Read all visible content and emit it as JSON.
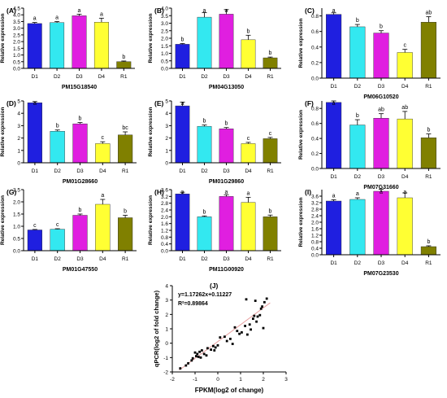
{
  "figure": {
    "categories": [
      "D1",
      "D2",
      "D3",
      "D4",
      "R1"
    ],
    "bar_colors": [
      "#1f1fe0",
      "#33e8f0",
      "#e01fe0",
      "#ffff33",
      "#808000"
    ],
    "axis_label": "Relative expression"
  },
  "chart_data": [
    {
      "type": "bar",
      "panel": "(A)",
      "title": "PM15G18540",
      "ylabel": "Relative expression",
      "categories": [
        "D1",
        "D2",
        "D3",
        "D4",
        "R1"
      ],
      "values": [
        3.35,
        3.42,
        3.93,
        3.45,
        0.5
      ],
      "errors": [
        0.08,
        0.08,
        0.12,
        0.3,
        0.05
      ],
      "letters": [
        "a",
        "a",
        "a",
        "a",
        "b"
      ],
      "ylim": [
        0,
        4.5
      ],
      "yticks": [
        "0.0",
        "0.5",
        "1.0",
        "1.5",
        "2.0",
        "2.5",
        "3.0",
        "3.5",
        "4.0",
        "4.5"
      ]
    },
    {
      "type": "bar",
      "panel": "(B)",
      "title": "PM04G13050",
      "ylabel": "Relative expression",
      "categories": [
        "D1",
        "D2",
        "D3",
        "D4",
        "R1"
      ],
      "values": [
        1.6,
        3.4,
        3.6,
        1.9,
        0.7
      ],
      "errors": [
        0.05,
        0.3,
        0.3,
        0.3,
        0.05
      ],
      "letters": [
        "b",
        "a",
        "a",
        "b",
        "b"
      ],
      "ylim": [
        0,
        4.0
      ],
      "yticks": [
        "0.0",
        "0.5",
        "1.0",
        "1.5",
        "2.0",
        "2.5",
        "3.0",
        "3.5",
        "4.0"
      ]
    },
    {
      "type": "bar",
      "panel": "(C)",
      "title": "PM06G10520",
      "ylabel": "Relative expression",
      "categories": [
        "D1",
        "D2",
        "D3",
        "D4",
        "R1"
      ],
      "values": [
        0.82,
        0.66,
        0.58,
        0.33,
        0.72
      ],
      "errors": [
        0.02,
        0.03,
        0.03,
        0.04,
        0.07
      ],
      "letters": [
        "a",
        "b",
        "b",
        "c",
        "ab"
      ],
      "ylim": [
        0,
        0.9
      ],
      "yticks": [
        "0.0",
        "0.2",
        "0.4",
        "0.6",
        "0.8"
      ]
    },
    {
      "type": "bar",
      "panel": "(D)",
      "title": "PM01G28660",
      "ylabel": "Relative expression",
      "categories": [
        "D1",
        "D2",
        "D3",
        "D4",
        "R1"
      ],
      "values": [
        4.85,
        2.55,
        3.15,
        1.55,
        2.25
      ],
      "errors": [
        0.1,
        0.1,
        0.1,
        0.15,
        0.25
      ],
      "letters": [
        "a",
        "b",
        "b",
        "c",
        "bc"
      ],
      "ylim": [
        0,
        5
      ],
      "yticks": [
        "0",
        "1",
        "2",
        "3",
        "4",
        "5"
      ]
    },
    {
      "type": "bar",
      "panel": "(E)",
      "title": "PM01G29860",
      "ylabel": "Relative expression",
      "categories": [
        "D1",
        "D2",
        "D3",
        "D4",
        "R1"
      ],
      "values": [
        4.6,
        2.95,
        2.75,
        1.55,
        1.95
      ],
      "errors": [
        0.3,
        0.1,
        0.1,
        0.1,
        0.1
      ],
      "letters": [
        "a",
        "b",
        "b",
        "c",
        "c"
      ],
      "ylim": [
        0,
        5
      ],
      "yticks": [
        "0",
        "1",
        "2",
        "3",
        "4",
        "5"
      ]
    },
    {
      "type": "bar",
      "panel": "(F)",
      "title": "PM07G31660",
      "ylabel": "Relative expression",
      "categories": [
        "D1",
        "D2",
        "D3",
        "D4",
        "R1"
      ],
      "values": [
        0.88,
        0.58,
        0.67,
        0.66,
        0.41
      ],
      "errors": [
        0.02,
        0.07,
        0.06,
        0.1,
        0.05
      ],
      "letters": [
        "a",
        "b",
        "ab",
        "ab",
        "b"
      ],
      "ylim": [
        0,
        0.9
      ],
      "yticks": [
        "0.0",
        "0.2",
        "0.4",
        "0.6",
        "0.8"
      ]
    },
    {
      "type": "bar",
      "panel": "(G)",
      "title": "PM01G47550",
      "ylabel": "Relative expression",
      "categories": [
        "D1",
        "D2",
        "D3",
        "D4",
        "R1"
      ],
      "values": [
        0.85,
        0.88,
        1.45,
        1.9,
        1.35
      ],
      "errors": [
        0.02,
        0.02,
        0.05,
        0.2,
        0.1
      ],
      "letters": [
        "c",
        "c",
        "b",
        "a",
        "b"
      ],
      "ylim": [
        0,
        2.5
      ],
      "yticks": [
        "0.0",
        "0.5",
        "1.0",
        "1.5",
        "2.0",
        "2.5"
      ]
    },
    {
      "type": "bar",
      "panel": "(H)",
      "title": "PM11G00920",
      "ylabel": "Relative expression",
      "categories": [
        "D1",
        "D2",
        "D3",
        "D4",
        "R1"
      ],
      "values": [
        3.35,
        2.0,
        3.2,
        2.85,
        2.0
      ],
      "errors": [
        0.1,
        0.05,
        0.1,
        0.3,
        0.1
      ],
      "letters": [
        "a",
        "b",
        "a",
        "a",
        "b"
      ],
      "ylim": [
        0,
        3.6
      ],
      "yticks": [
        "0.0",
        "0.4",
        "0.8",
        "1.2",
        "1.6",
        "2.0",
        "2.4",
        "2.8",
        "3.2",
        "3.6"
      ]
    },
    {
      "type": "bar",
      "panel": "(I)",
      "title": "PM07G23530",
      "ylabel": "Relative expression",
      "categories": [
        "D1",
        "D2",
        "D3",
        "D4",
        "R1"
      ],
      "values": [
        3.3,
        3.4,
        3.9,
        3.5,
        0.5
      ],
      "errors": [
        0.08,
        0.1,
        0.12,
        0.3,
        0.05
      ],
      "letters": [
        "a",
        "a",
        "a",
        "a",
        "b"
      ],
      "ylim": [
        0,
        4.0
      ],
      "yticks": [
        "0.0",
        "0.4",
        "0.8",
        "1.2",
        "1.6",
        "2.0",
        "2.4",
        "2.8",
        "3.2",
        "3.6"
      ]
    },
    {
      "type": "scatter",
      "panel": "(J)",
      "xlabel": "FPKM(log2 of change)",
      "ylabel": "qPCR(log2 of fold change)",
      "equation": "y=1.17262x+0.11227",
      "r2": "R²=0.89864",
      "fit": {
        "slope": 1.17262,
        "intercept": 0.11227
      },
      "xlim": [
        -2,
        3
      ],
      "ylim": [
        -2,
        4
      ],
      "xticks": [
        "-2",
        "-1",
        "0",
        "1",
        "2",
        "3"
      ],
      "yticks": [
        "-2",
        "-1",
        "0",
        "1",
        "2",
        "3",
        "4"
      ],
      "points": [
        [
          -1.65,
          -1.75
        ],
        [
          -1.4,
          -1.55
        ],
        [
          -1.3,
          -1.4
        ],
        [
          -1.15,
          -1.2
        ],
        [
          -1.1,
          -1.05
        ],
        [
          -1.0,
          -0.65
        ],
        [
          -0.95,
          -0.9
        ],
        [
          -0.9,
          -0.75
        ],
        [
          -0.85,
          -0.95
        ],
        [
          -0.8,
          -0.6
        ],
        [
          -0.75,
          -1.0
        ],
        [
          -0.7,
          -0.5
        ],
        [
          -0.6,
          -0.75
        ],
        [
          -0.5,
          -0.85
        ],
        [
          -0.45,
          -0.35
        ],
        [
          -0.3,
          -0.45
        ],
        [
          -0.2,
          -0.2
        ],
        [
          -0.15,
          -0.5
        ],
        [
          -0.1,
          -0.3
        ],
        [
          0.0,
          -0.15
        ],
        [
          0.1,
          0.4
        ],
        [
          0.3,
          0.45
        ],
        [
          0.4,
          0.15
        ],
        [
          0.55,
          0.3
        ],
        [
          0.65,
          -0.05
        ],
        [
          0.75,
          1.1
        ],
        [
          0.85,
          0.85
        ],
        [
          0.95,
          0.65
        ],
        [
          1.05,
          0.75
        ],
        [
          1.2,
          1.2
        ],
        [
          1.3,
          0.6
        ],
        [
          1.4,
          1.3
        ],
        [
          1.45,
          0.95
        ],
        [
          1.55,
          1.7
        ],
        [
          1.6,
          1.9
        ],
        [
          1.65,
          2.95
        ],
        [
          1.7,
          1.5
        ],
        [
          1.75,
          1.85
        ],
        [
          1.85,
          1.95
        ],
        [
          1.9,
          2.4
        ],
        [
          1.95,
          2.55
        ],
        [
          2.0,
          1.05
        ],
        [
          2.05,
          2.85
        ],
        [
          2.15,
          3.1
        ],
        [
          1.25,
          3.05
        ]
      ]
    }
  ]
}
